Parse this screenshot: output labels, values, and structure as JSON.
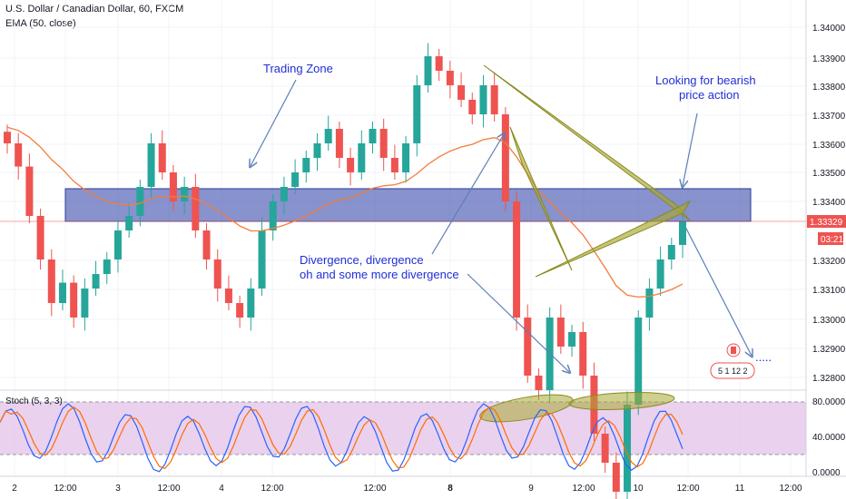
{
  "header": {
    "symbol": "U.S. Dollar / Canadian Dollar, 60, FXCM",
    "indicator": "EMA (50, close)"
  },
  "price_axis": {
    "ticks": [
      "1.34000",
      "1.33900",
      "1.33800",
      "1.33700",
      "1.33600",
      "1.33500",
      "1.33400",
      "1.33200",
      "1.33100",
      "1.33000",
      "1.32900",
      "1.32800"
    ],
    "last_price": "1.33329",
    "countdown": "03:21"
  },
  "stoch_panel": {
    "label": "Stoch (5, 3, 3)",
    "ticks": [
      "80.0000",
      "40.0000",
      "0.0000"
    ]
  },
  "time_axis": {
    "labels": [
      "2",
      "12:00",
      "3",
      "12:00",
      "4",
      "12:00",
      "12:00",
      "8",
      "9",
      "12:00",
      "10",
      "12:00",
      "11",
      "12:00"
    ]
  },
  "annotations": {
    "trading_zone": "Trading Zone",
    "bearish_line1": "Looking for bearish",
    "bearish_line2": "price action",
    "divergence_line1": "Divergence, divergence",
    "divergence_line2": "oh and some more divergence"
  },
  "events": {
    "counts": "5  1  12  2",
    "dots": "....."
  },
  "colors": {
    "up": "#26a69a",
    "down": "#ef5350",
    "ema": "#f57c3d",
    "zone_fill": "#3949ab",
    "triangle": "#a8a832",
    "stoch_k": "#2962ff",
    "stoch_d": "#ff6d00",
    "stoch_bg": "#e1bee7",
    "annotation": "#1f2fd6",
    "arrow": "#5c7fb8"
  },
  "chart_data": {
    "type": "candlestick",
    "series": [
      {
        "name": "U.S. Dollar / Canadian Dollar, 60, FXCM",
        "close": [
          1.336,
          1.3352,
          1.3335,
          1.332,
          1.3305,
          1.3312,
          1.33,
          1.331,
          1.3315,
          1.332,
          1.333,
          1.3335,
          1.3345,
          1.336,
          1.335,
          1.334,
          1.3345,
          1.333,
          1.332,
          1.331,
          1.3305,
          1.33,
          1.331,
          1.333,
          1.334,
          1.3345,
          1.335,
          1.3355,
          1.336,
          1.3365,
          1.3355,
          1.335,
          1.336,
          1.3365,
          1.3355,
          1.335,
          1.336,
          1.338,
          1.339,
          1.3385,
          1.338,
          1.3375,
          1.337,
          1.338,
          1.337,
          1.334,
          1.33,
          1.328,
          1.3275,
          1.33,
          1.329,
          1.3295,
          1.328,
          1.326,
          1.325,
          1.324,
          1.327,
          1.33,
          1.331,
          1.332,
          1.3325,
          1.3333
        ]
      }
    ],
    "y_range": [
      1.3275,
      1.3405
    ],
    "ylabel": ""
  }
}
